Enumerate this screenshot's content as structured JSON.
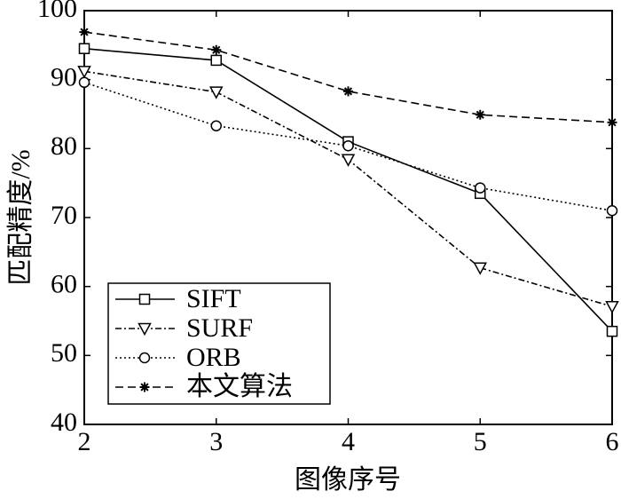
{
  "chart_data": {
    "type": "line",
    "xlabel": "图像序号",
    "ylabel": "匹配精度/%",
    "x": [
      2,
      3,
      4,
      5,
      6
    ],
    "series": [
      {
        "name": "SIFT",
        "color": "#000000",
        "linestyle": "solid",
        "marker": "square",
        "values": [
          94.5,
          92.8,
          81,
          73.5,
          53.5
        ]
      },
      {
        "name": "SURF",
        "color": "#000000",
        "linestyle": "dashdot",
        "marker": "triangle-down",
        "values": [
          91.2,
          88.2,
          78.4,
          62.7,
          57.1
        ]
      },
      {
        "name": "ORB",
        "color": "#000000",
        "linestyle": "dotted",
        "marker": "circle",
        "values": [
          89.6,
          83.3,
          80.4,
          74.3,
          71
        ]
      },
      {
        "name": "本文算法",
        "color": "#000000",
        "linestyle": "dashed",
        "marker": "star",
        "values": [
          96.9,
          94.3,
          88.3,
          84.9,
          83.8
        ]
      }
    ],
    "xlim": [
      2,
      6
    ],
    "xticks": [
      2,
      3,
      4,
      5,
      6
    ],
    "ylim": [
      40,
      100
    ],
    "yticks": [
      40,
      50,
      60,
      70,
      80,
      90,
      100
    ],
    "grid": false,
    "legend": "lower left"
  }
}
